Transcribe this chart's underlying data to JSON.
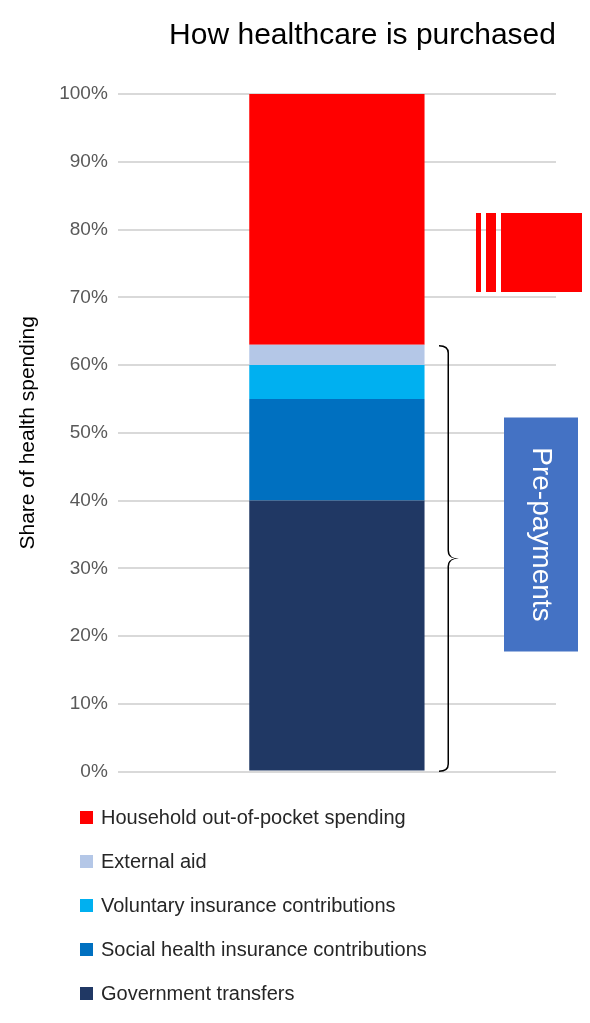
{
  "chart_data": {
    "type": "bar",
    "title": "How healthcare is purchased",
    "ylabel": "Share of health spending",
    "categories": [
      null
    ],
    "stacked": true,
    "series": [
      {
        "name": "Government transfers",
        "color": "#203864",
        "values": [
          40
        ]
      },
      {
        "name": "Social health insurance contributions",
        "color": "#0070c0",
        "values": [
          15
        ]
      },
      {
        "name": "Voluntary insurance contributions",
        "color": "#00b0f0",
        "values": [
          5
        ]
      },
      {
        "name": "External aid",
        "color": "#b4c7e7",
        "values": [
          3
        ]
      },
      {
        "name": "Household out-of-pocket spending",
        "color": "#ff0000",
        "values": [
          37
        ]
      }
    ],
    "ylim": [
      0,
      100
    ],
    "yticks": [
      {
        "value": 0,
        "label": "0%"
      },
      {
        "value": 10,
        "label": "10%"
      },
      {
        "value": 20,
        "label": "20%"
      },
      {
        "value": 30,
        "label": "30%"
      },
      {
        "value": 40,
        "label": "40%"
      },
      {
        "value": 50,
        "label": "50%"
      },
      {
        "value": 60,
        "label": "60%"
      },
      {
        "value": 70,
        "label": "70%"
      },
      {
        "value": 80,
        "label": "80%"
      },
      {
        "value": 90,
        "label": "90%"
      },
      {
        "value": 100,
        "label": "100%"
      }
    ],
    "grid": "y",
    "tick_labels": "y",
    "legend": "bottom",
    "annotations": [
      "Pre-payments"
    ]
  }
}
